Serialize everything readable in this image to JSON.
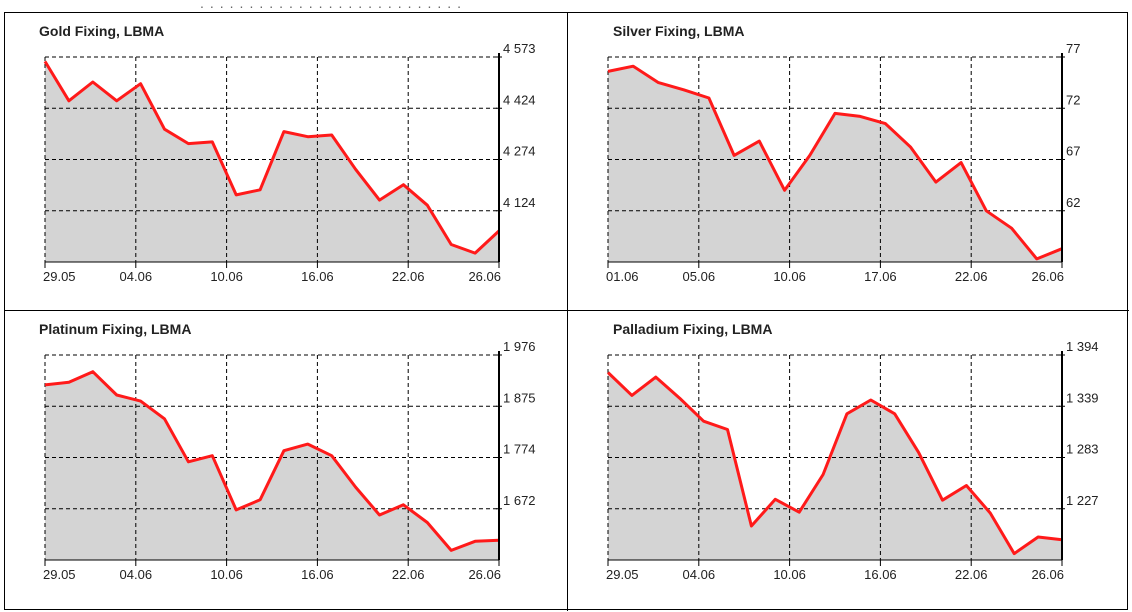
{
  "top_strip_text": "...........................",
  "chart_data": [
    {
      "type": "area",
      "title": "Gold Fixing, LBMA",
      "x_ticks": [
        "29.05",
        "04.06",
        "10.06",
        "16.06",
        "22.06",
        "26.06"
      ],
      "y_ticks": [
        "4 124",
        "4 274",
        "4 424",
        "4 573"
      ],
      "ylim": [
        3974,
        4573
      ],
      "series": [
        {
          "values": [
            4560,
            4445,
            4500,
            4445,
            4495,
            4362,
            4320,
            4325,
            4170,
            4185,
            4355,
            4340,
            4345,
            4245,
            4155,
            4200,
            4140,
            4025,
            4000,
            4065
          ]
        }
      ],
      "line_color": "#ff1a1a",
      "fill_color": "#d4d4d4",
      "grid": true
    },
    {
      "type": "area",
      "title": "Silver Fixing, LBMA",
      "x_ticks": [
        "01.06",
        "05.06",
        "10.06",
        "17.06",
        "22.06",
        "26.06"
      ],
      "y_ticks": [
        "62",
        "67",
        "72",
        "77"
      ],
      "ylim": [
        57,
        77
      ],
      "series": [
        {
          "values": [
            75.6,
            76.1,
            74.5,
            73.8,
            73.0,
            67.4,
            68.8,
            64.0,
            67.4,
            71.5,
            71.2,
            70.5,
            68.2,
            64.8,
            66.7,
            62.0,
            60.3,
            57.3,
            58.3
          ]
        }
      ],
      "line_color": "#ff1a1a",
      "fill_color": "#d4d4d4",
      "grid": true
    },
    {
      "type": "area",
      "title": "Platinum Fixing, LBMA",
      "x_ticks": [
        "29.05",
        "04.06",
        "10.06",
        "16.06",
        "22.06",
        "26.06"
      ],
      "y_ticks": [
        "1 672",
        "1 774",
        "1 875",
        "1 976"
      ],
      "ylim": [
        1571,
        1976
      ],
      "series": [
        {
          "values": [
            1917,
            1922,
            1943,
            1897,
            1885,
            1850,
            1765,
            1777,
            1670,
            1690,
            1787,
            1800,
            1777,
            1715,
            1660,
            1680,
            1645,
            1590,
            1608,
            1610
          ]
        }
      ],
      "line_color": "#ff1a1a",
      "fill_color": "#d4d4d4",
      "grid": true
    },
    {
      "type": "area",
      "title": "Palladium Fixing, LBMA",
      "x_ticks": [
        "29.05",
        "04.06",
        "10.06",
        "16.06",
        "22.06",
        "26.06"
      ],
      "y_ticks": [
        "1 227",
        "1 283",
        "1 339",
        "1 394"
      ],
      "ylim": [
        1171,
        1394
      ],
      "series": [
        {
          "values": [
            1375,
            1350,
            1370,
            1347,
            1322,
            1313,
            1208,
            1237,
            1223,
            1264,
            1330,
            1345,
            1330,
            1288,
            1236,
            1252,
            1222,
            1178,
            1196,
            1193
          ]
        }
      ],
      "line_color": "#ff1a1a",
      "fill_color": "#d4d4d4",
      "grid": true
    }
  ]
}
